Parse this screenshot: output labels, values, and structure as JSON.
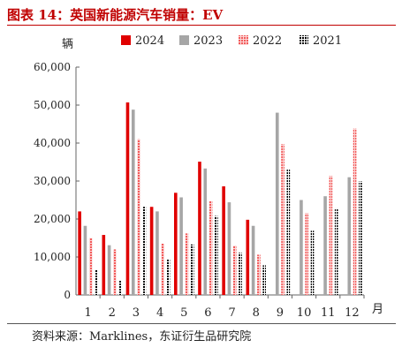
{
  "title": "图表 14：英国新能源汽车销量：EV",
  "source": "资料来源：Marklines，东证衍生品研究院",
  "chart_data": {
    "type": "bar",
    "y_unit": "辆",
    "x_unit": "月",
    "categories": [
      "1",
      "2",
      "3",
      "4",
      "5",
      "6",
      "7",
      "8",
      "9",
      "10",
      "11",
      "12"
    ],
    "ylim": [
      0,
      60000
    ],
    "yticks": [
      "0",
      "10,000",
      "20,000",
      "30,000",
      "40,000",
      "50,000",
      "60,000"
    ],
    "legend_position": "top",
    "grid": false,
    "series": [
      {
        "name": "2024",
        "color": "#e00000",
        "pattern": "solid",
        "values": [
          22000,
          15800,
          50700,
          23200,
          26900,
          35100,
          28600,
          19800,
          null,
          null,
          null,
          null
        ]
      },
      {
        "name": "2023",
        "color": "#a6a6a6",
        "pattern": "solid",
        "values": [
          18200,
          13100,
          48800,
          22000,
          25700,
          33300,
          24400,
          18200,
          48000,
          25000,
          26000,
          31000
        ]
      },
      {
        "name": "2022",
        "color": "#f25a5a",
        "pattern": "dotted",
        "values": [
          15000,
          12000,
          41000,
          13500,
          16200,
          24700,
          13000,
          10600,
          39700,
          21500,
          31300,
          43800
        ]
      },
      {
        "name": "2021",
        "color": "#000000",
        "pattern": "dotted",
        "values": [
          6700,
          3800,
          23200,
          9500,
          13300,
          20800,
          11100,
          7800,
          33000,
          16900,
          22800,
          29900
        ]
      }
    ]
  }
}
